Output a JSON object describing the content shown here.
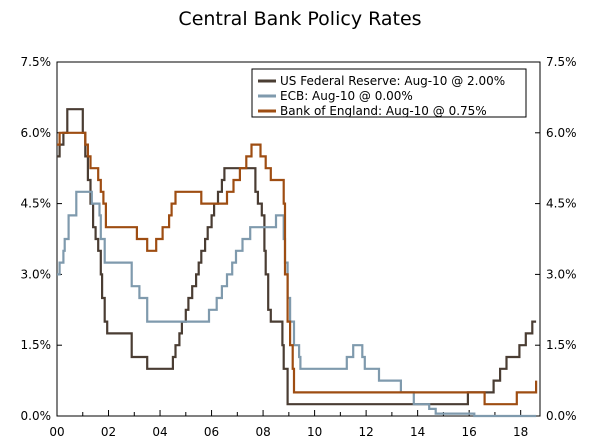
{
  "chart_data": {
    "type": "line",
    "title": "Central Bank Policy Rates",
    "xlabel": "",
    "ylabel": "",
    "xlim": [
      2000,
      2018.75
    ],
    "ylim": [
      0,
      7.5
    ],
    "x_ticks": [
      2000,
      2002,
      2004,
      2006,
      2008,
      2010,
      2012,
      2014,
      2016,
      2018
    ],
    "x_tick_labels": [
      "00",
      "02",
      "04",
      "06",
      "08",
      "10",
      "12",
      "14",
      "16",
      "18"
    ],
    "y_ticks": [
      0,
      1.5,
      3.0,
      4.5,
      6.0,
      7.5
    ],
    "y_tick_labels": [
      "0.0%",
      "1.5%",
      "3.0%",
      "4.5%",
      "6.0%",
      "7.5%"
    ],
    "legend_position": "top-right",
    "series": [
      {
        "name": "US Federal Reserve: Aug-10 @ 2.00%",
        "color": "#4a3d33",
        "points": [
          [
            2000,
            5.5
          ],
          [
            2000.1,
            5.75
          ],
          [
            2000.25,
            6.0
          ],
          [
            2000.4,
            6.5
          ],
          [
            2001.0,
            6.0
          ],
          [
            2001.1,
            5.5
          ],
          [
            2001.2,
            5.0
          ],
          [
            2001.3,
            4.5
          ],
          [
            2001.4,
            4.0
          ],
          [
            2001.5,
            3.75
          ],
          [
            2001.6,
            3.5
          ],
          [
            2001.7,
            3.0
          ],
          [
            2001.75,
            2.5
          ],
          [
            2001.85,
            2.0
          ],
          [
            2001.95,
            1.75
          ],
          [
            2002.9,
            1.25
          ],
          [
            2003.5,
            1.0
          ],
          [
            2004.5,
            1.25
          ],
          [
            2004.6,
            1.5
          ],
          [
            2004.75,
            1.75
          ],
          [
            2004.85,
            2.0
          ],
          [
            2005.0,
            2.25
          ],
          [
            2005.1,
            2.5
          ],
          [
            2005.25,
            2.75
          ],
          [
            2005.4,
            3.0
          ],
          [
            2005.5,
            3.25
          ],
          [
            2005.6,
            3.5
          ],
          [
            2005.75,
            3.75
          ],
          [
            2005.85,
            4.0
          ],
          [
            2006.0,
            4.25
          ],
          [
            2006.1,
            4.5
          ],
          [
            2006.25,
            4.75
          ],
          [
            2006.4,
            5.0
          ],
          [
            2006.5,
            5.25
          ],
          [
            2007.7,
            4.75
          ],
          [
            2007.8,
            4.5
          ],
          [
            2007.95,
            4.25
          ],
          [
            2008.05,
            3.5
          ],
          [
            2008.1,
            3.0
          ],
          [
            2008.2,
            2.25
          ],
          [
            2008.3,
            2.0
          ],
          [
            2008.75,
            1.5
          ],
          [
            2008.8,
            1.0
          ],
          [
            2008.95,
            0.25
          ],
          [
            2015.95,
            0.5
          ],
          [
            2016.95,
            0.75
          ],
          [
            2017.2,
            1.0
          ],
          [
            2017.45,
            1.25
          ],
          [
            2017.95,
            1.5
          ],
          [
            2018.2,
            1.75
          ],
          [
            2018.45,
            2.0
          ],
          [
            2018.6,
            2.0
          ]
        ]
      },
      {
        "name": "ECB: Aug-10 @ 0.00%",
        "color": "#7f9aad",
        "points": [
          [
            2000,
            3.0
          ],
          [
            2000.1,
            3.25
          ],
          [
            2000.25,
            3.5
          ],
          [
            2000.3,
            3.75
          ],
          [
            2000.45,
            4.25
          ],
          [
            2000.75,
            4.75
          ],
          [
            2001.35,
            4.5
          ],
          [
            2001.65,
            4.25
          ],
          [
            2001.7,
            3.75
          ],
          [
            2001.85,
            3.25
          ],
          [
            2002.9,
            2.75
          ],
          [
            2003.2,
            2.5
          ],
          [
            2003.5,
            2.0
          ],
          [
            2005.9,
            2.25
          ],
          [
            2006.2,
            2.5
          ],
          [
            2006.4,
            2.75
          ],
          [
            2006.6,
            3.0
          ],
          [
            2006.8,
            3.25
          ],
          [
            2006.95,
            3.5
          ],
          [
            2007.2,
            3.75
          ],
          [
            2007.5,
            4.0
          ],
          [
            2008.5,
            4.25
          ],
          [
            2008.8,
            3.75
          ],
          [
            2008.85,
            3.25
          ],
          [
            2008.95,
            2.5
          ],
          [
            2009.05,
            2.0
          ],
          [
            2009.2,
            1.5
          ],
          [
            2009.4,
            1.25
          ],
          [
            2009.45,
            1.0
          ],
          [
            2011.25,
            1.25
          ],
          [
            2011.5,
            1.5
          ],
          [
            2011.85,
            1.25
          ],
          [
            2011.95,
            1.0
          ],
          [
            2012.5,
            0.75
          ],
          [
            2013.35,
            0.5
          ],
          [
            2013.85,
            0.25
          ],
          [
            2014.45,
            0.15
          ],
          [
            2014.7,
            0.05
          ],
          [
            2016.2,
            0.0
          ],
          [
            2018.6,
            0.0
          ]
        ]
      },
      {
        "name": "Bank of England: Aug-10 @ 0.75%",
        "color": "#9e4d12",
        "points": [
          [
            2000,
            5.75
          ],
          [
            2000.1,
            6.0
          ],
          [
            2001.1,
            5.75
          ],
          [
            2001.2,
            5.5
          ],
          [
            2001.3,
            5.25
          ],
          [
            2001.6,
            5.0
          ],
          [
            2001.7,
            4.75
          ],
          [
            2001.8,
            4.5
          ],
          [
            2001.9,
            4.0
          ],
          [
            2003.1,
            3.75
          ],
          [
            2003.5,
            3.5
          ],
          [
            2003.85,
            3.75
          ],
          [
            2004.1,
            4.0
          ],
          [
            2004.35,
            4.25
          ],
          [
            2004.45,
            4.5
          ],
          [
            2004.6,
            4.75
          ],
          [
            2005.6,
            4.5
          ],
          [
            2006.6,
            4.75
          ],
          [
            2006.85,
            5.0
          ],
          [
            2007.1,
            5.25
          ],
          [
            2007.35,
            5.5
          ],
          [
            2007.55,
            5.75
          ],
          [
            2007.9,
            5.5
          ],
          [
            2008.1,
            5.25
          ],
          [
            2008.3,
            5.0
          ],
          [
            2008.8,
            4.5
          ],
          [
            2008.85,
            3.0
          ],
          [
            2008.95,
            2.0
          ],
          [
            2009.05,
            1.5
          ],
          [
            2009.15,
            1.0
          ],
          [
            2009.2,
            0.5
          ],
          [
            2016.6,
            0.25
          ],
          [
            2017.85,
            0.5
          ],
          [
            2018.6,
            0.75
          ]
        ]
      }
    ]
  }
}
